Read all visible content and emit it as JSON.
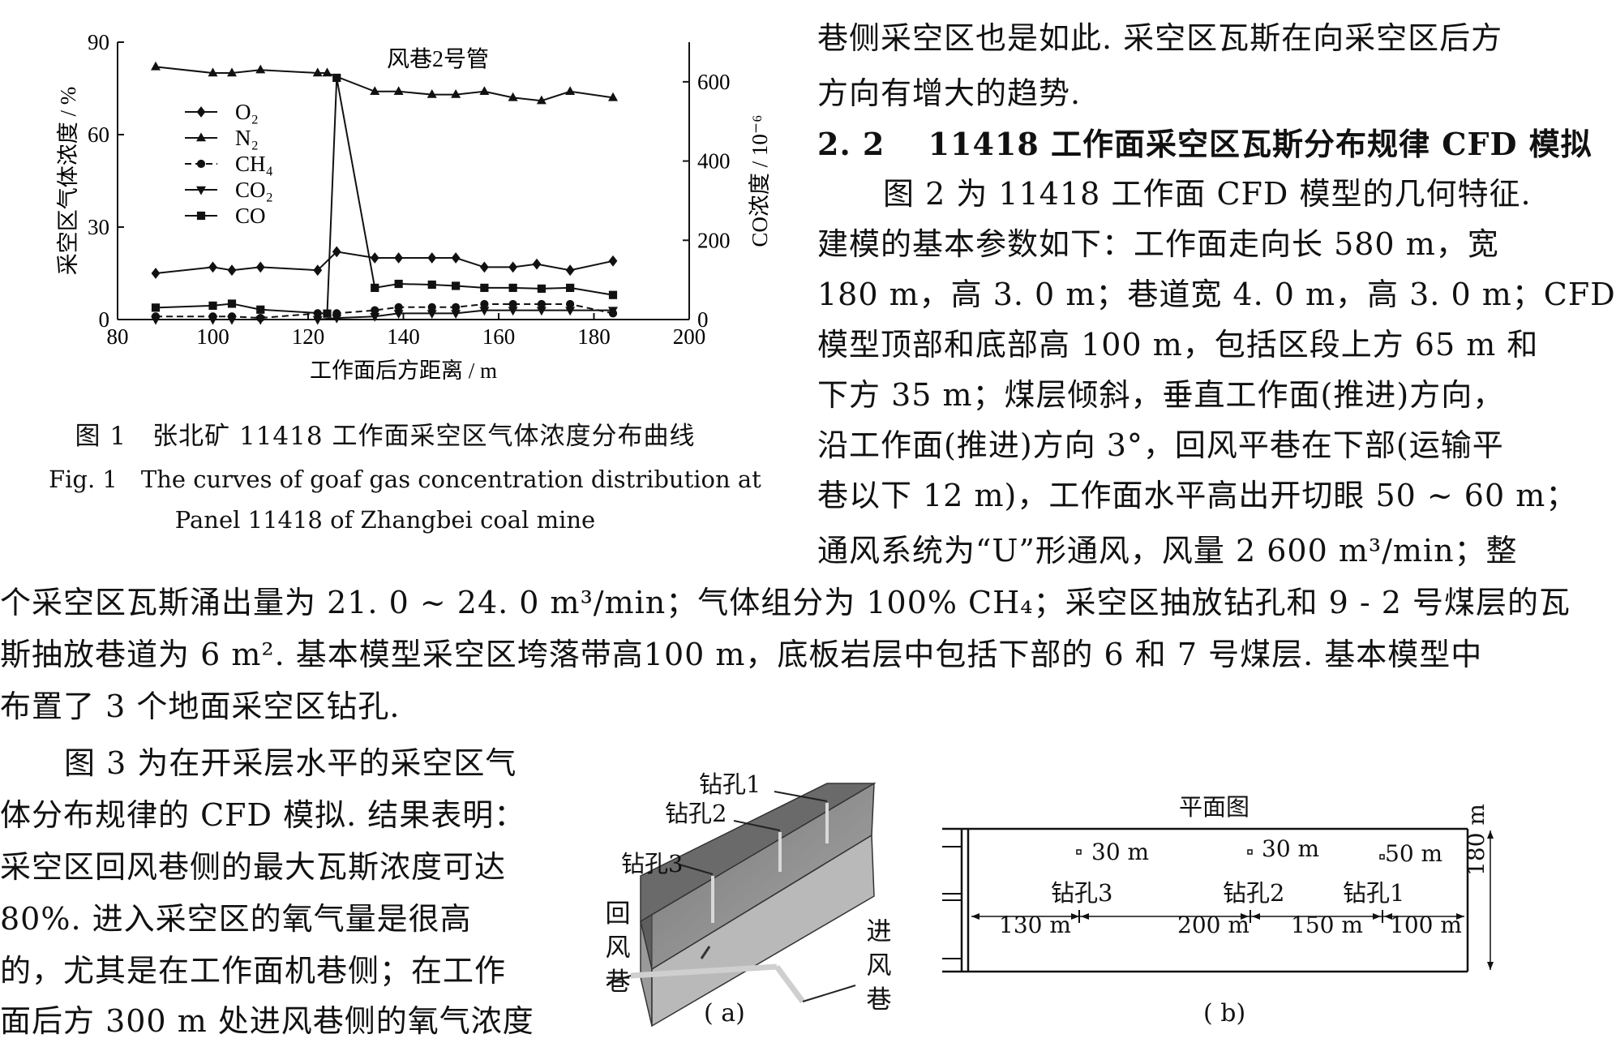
{
  "figure1": {
    "chart_data": {
      "type": "line",
      "title": "风巷2号管",
      "xlabel": "工作面后方距离 / m",
      "ylabel": "采空区气体浓度 / %",
      "y2label": "CO浓度 / 10⁻⁶",
      "xlim": [
        80,
        200
      ],
      "ylim": [
        0,
        90
      ],
      "y2lim": [
        0,
        700
      ],
      "x_ticks": [
        "80",
        "100",
        "120",
        "140",
        "160",
        "180",
        "200"
      ],
      "y_ticks": [
        "0",
        "30",
        "60",
        "90"
      ],
      "y2_ticks": [
        "0",
        "200",
        "400",
        "600"
      ],
      "legend_position": "top-left",
      "series": [
        {
          "name": "O₂",
          "marker": "diamond",
          "dash": "solid",
          "axis": "left",
          "x": [
            88,
            100,
            104,
            110,
            122,
            126,
            134,
            139,
            146,
            151,
            157,
            163,
            168,
            175,
            184
          ],
          "y": [
            15,
            17,
            16,
            17,
            16,
            22,
            20,
            20,
            20,
            20,
            17,
            17,
            18,
            16,
            19
          ]
        },
        {
          "name": "N₂",
          "marker": "triangle-up",
          "dash": "solid",
          "axis": "left",
          "x": [
            88,
            100,
            104,
            110,
            122,
            124,
            134,
            139,
            146,
            151,
            157,
            163,
            169,
            175,
            184
          ],
          "y": [
            82,
            80,
            80,
            81,
            80,
            80,
            74,
            74,
            73,
            73,
            74,
            72,
            71,
            74,
            72
          ]
        },
        {
          "name": "CH₄",
          "marker": "circle",
          "dash": "dashed",
          "axis": "left",
          "x": [
            88,
            100,
            104,
            110,
            122,
            126,
            134,
            139,
            146,
            151,
            157,
            163,
            169,
            175,
            184
          ],
          "y": [
            1,
            1,
            1,
            0.5,
            2,
            2,
            3,
            4,
            4,
            4,
            5,
            5,
            5,
            5,
            2
          ]
        },
        {
          "name": "CO₂",
          "marker": "triangle-down",
          "dash": "solid",
          "axis": "left",
          "x": [
            88,
            100,
            104,
            110,
            122,
            126,
            134,
            139,
            146,
            151,
            157,
            163,
            169,
            175,
            184
          ],
          "y": [
            0,
            0,
            0,
            0,
            0,
            0.5,
            1,
            2,
            2,
            2,
            3,
            3,
            3,
            3,
            3
          ]
        },
        {
          "name": "CO",
          "marker": "square",
          "dash": "solid",
          "axis": "right",
          "x": [
            88,
            100,
            104,
            110,
            124,
            126,
            134,
            139,
            146,
            151,
            157,
            163,
            169,
            175,
            184
          ],
          "y": [
            30,
            35,
            40,
            25,
            15,
            610,
            80,
            90,
            88,
            85,
            80,
            80,
            78,
            80,
            62
          ]
        }
      ]
    },
    "caption_cn": "图 1　张北矿 11418 工作面采空区气体浓度分布曲线",
    "caption_en_1": "Fig. 1　The curves of goaf gas concentration distribution at",
    "caption_en_2": "Panel 11418 of Zhangbei coal mine"
  },
  "right_column": {
    "line1": "巷侧采空区也是如此. 采空区瓦斯在向采空区后方",
    "line2": "方向有增大的趋势.",
    "heading": "2. 2　 11418 工作面采空区瓦斯分布规律 CFD 模拟",
    "lines": [
      "　图 2 为 11418 工作面 CFD 模型的几何特征.",
      "建模的基本参数如下：工作面走向长 580 m，宽",
      "180 m，高 3. 0 m；巷道宽 4. 0 m，高 3. 0 m；CFD",
      "模型顶部和底部高 100 m，包括区段上方 65 m 和",
      "下方 35 m；煤层倾斜，垂直工作面(推进)方向，",
      "沿工作面(推进)方向 3°，回风平巷在下部(运输平",
      "巷以下 12 m)，工作面水平高出开切眼 50 ~ 60 m；",
      "通风系统为“U”形通风，风量 2 600 m³/min；整"
    ]
  },
  "full_width": {
    "lines": [
      "个采空区瓦斯涌出量为 21. 0 ~ 24. 0 m³/min；气体组分为 100% CH₄；采空区抽放钻孔和 9 - 2 号煤层的瓦",
      "斯抽放巷道为 6 m². 基本模型采空区垮落带高100 m，底板岩层中包括下部的 6 和 7 号煤层. 基本模型中",
      "布置了 3 个地面采空区钻孔."
    ]
  },
  "left_bottom": {
    "lines": [
      "　图 3 为在开采层水平的采空区气",
      "体分布规律的 CFD 模拟. 结果表明：",
      "采空区回风巷侧的最大瓦斯浓度可达",
      "80%. 进入采空区的氧气量是很高",
      "的，尤其是在工作面机巷侧；在工作",
      "面后方 300 m 处进风巷侧的氧气浓度"
    ]
  },
  "figure2": {
    "a": {
      "borehole1": "钻孔1",
      "borehole2": "钻孔2",
      "borehole3": "钻孔3",
      "return_airway": [
        "回",
        "风",
        "巷"
      ],
      "intake_airway": [
        "进",
        "风",
        "巷"
      ],
      "label": "( a)"
    },
    "b": {
      "title": "平面图",
      "dist1": "30 m",
      "dist2": "30 m",
      "dist3": "50 m",
      "borehole3": "钻孔3",
      "borehole2": "钻孔2",
      "borehole1": "钻孔1",
      "seg1": "130 m",
      "seg2": "200 m",
      "seg3": "150 m",
      "seg4": "100 m",
      "width": "180 m",
      "label": "( b)"
    }
  }
}
